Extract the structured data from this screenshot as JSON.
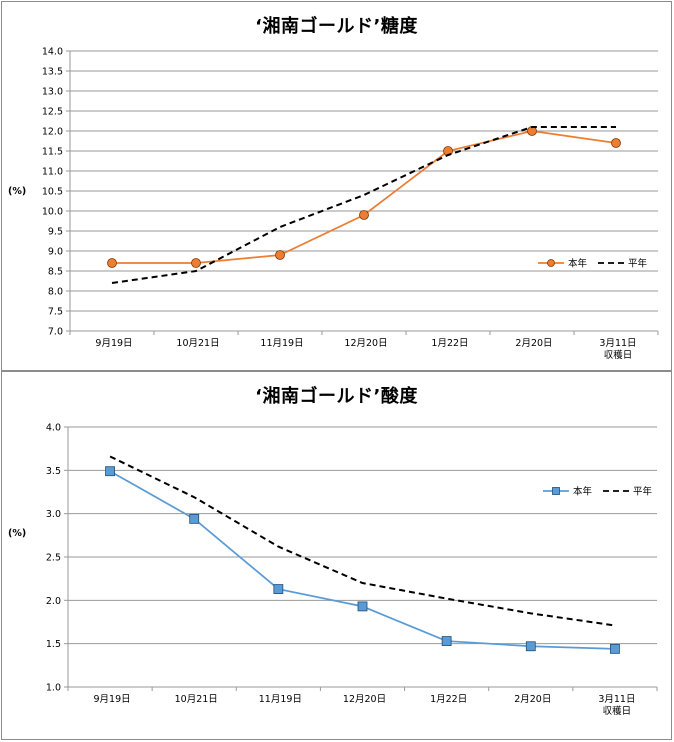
{
  "chart_data": [
    {
      "type": "line",
      "title": "‘湘南ゴールド’糖度",
      "ylabel": "(%)",
      "categories": [
        "9月19日",
        "10月21日",
        "11月19日",
        "12月20日",
        "1月22日",
        "2月20日",
        "3月11日"
      ],
      "category_sublabels": [
        "",
        "",
        "",
        "",
        "",
        "",
        "収穫日"
      ],
      "ylim": [
        7.0,
        14.0
      ],
      "ytick_step": 0.5,
      "ytick_decimals": 1,
      "grid": true,
      "legend_position": "middle-right",
      "series": [
        {
          "name": "本年",
          "values": [
            8.7,
            8.7,
            8.9,
            9.9,
            11.5,
            12.0,
            11.7
          ],
          "color": "#ED7D31",
          "marker": "circle",
          "marker_fill": "#ED7D31",
          "dashed": false
        },
        {
          "name": "平年",
          "values": [
            8.2,
            8.5,
            9.6,
            10.4,
            11.4,
            12.1,
            12.1
          ],
          "color": "#000000",
          "marker": "none",
          "dashed": true
        }
      ]
    },
    {
      "type": "line",
      "title": "‘湘南ゴールド’酸度",
      "ylabel": "(%)",
      "categories": [
        "9月19日",
        "10月21日",
        "11月19日",
        "12月20日",
        "1月22日",
        "2月20日",
        "3月11日"
      ],
      "category_sublabels": [
        "",
        "",
        "",
        "",
        "",
        "",
        "収穫日"
      ],
      "ylim": [
        1.0,
        4.0
      ],
      "ytick_step": 0.5,
      "ytick_decimals": 1,
      "grid": true,
      "legend_position": "top-right",
      "series": [
        {
          "name": "本年",
          "values": [
            3.49,
            2.94,
            2.13,
            1.93,
            1.53,
            1.47,
            1.44
          ],
          "color": "#5B9BD5",
          "marker": "square",
          "marker_fill": "#5B9BD5",
          "dashed": false
        },
        {
          "name": "平年",
          "values": [
            3.66,
            3.19,
            2.62,
            2.2,
            2.02,
            1.85,
            1.71
          ],
          "color": "#000000",
          "marker": "none",
          "dashed": true
        }
      ]
    }
  ]
}
